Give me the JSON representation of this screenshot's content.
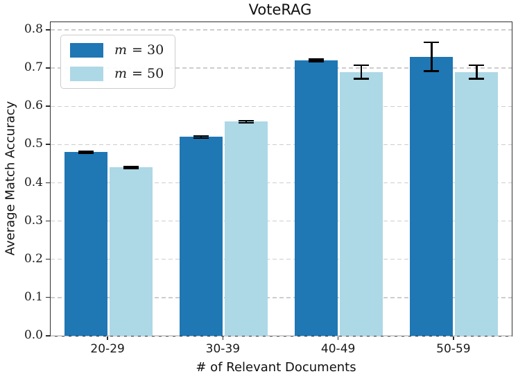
{
  "chart_data": {
    "type": "bar",
    "title": "VoteRAG",
    "xlabel": "# of Relevant Documents",
    "ylabel": "Average Match Accuracy",
    "categories": [
      "20-29",
      "30-39",
      "40-49",
      "50-59"
    ],
    "series": [
      {
        "name": "m = 30",
        "symbol": "m",
        "eq": "= 30",
        "color": "#1f77b4",
        "values": [
          0.48,
          0.52,
          0.72,
          0.73
        ],
        "errors": [
          0.004,
          0.005,
          0.005,
          0.04
        ]
      },
      {
        "name": "m = 50",
        "symbol": "m",
        "eq": "= 50",
        "color": "#add8e6",
        "values": [
          0.44,
          0.56,
          0.69,
          0.69
        ],
        "errors": [
          0.004,
          0.005,
          0.02,
          0.02
        ]
      }
    ],
    "ylim": [
      0,
      0.82
    ],
    "yticks": [
      0.0,
      0.1,
      0.2,
      0.3,
      0.4,
      0.5,
      0.6,
      0.7,
      0.8
    ],
    "ytick_labels": [
      "0.0",
      "0.1",
      "0.2",
      "0.3",
      "0.4",
      "0.5",
      "0.6",
      "0.7",
      "0.8"
    ],
    "grid": "horizontal-dashed",
    "grid_color": "#cdcdcd",
    "legend_position": "upper-left",
    "error_bar_color": "#000000",
    "spine_color": "#2e2e2e"
  }
}
